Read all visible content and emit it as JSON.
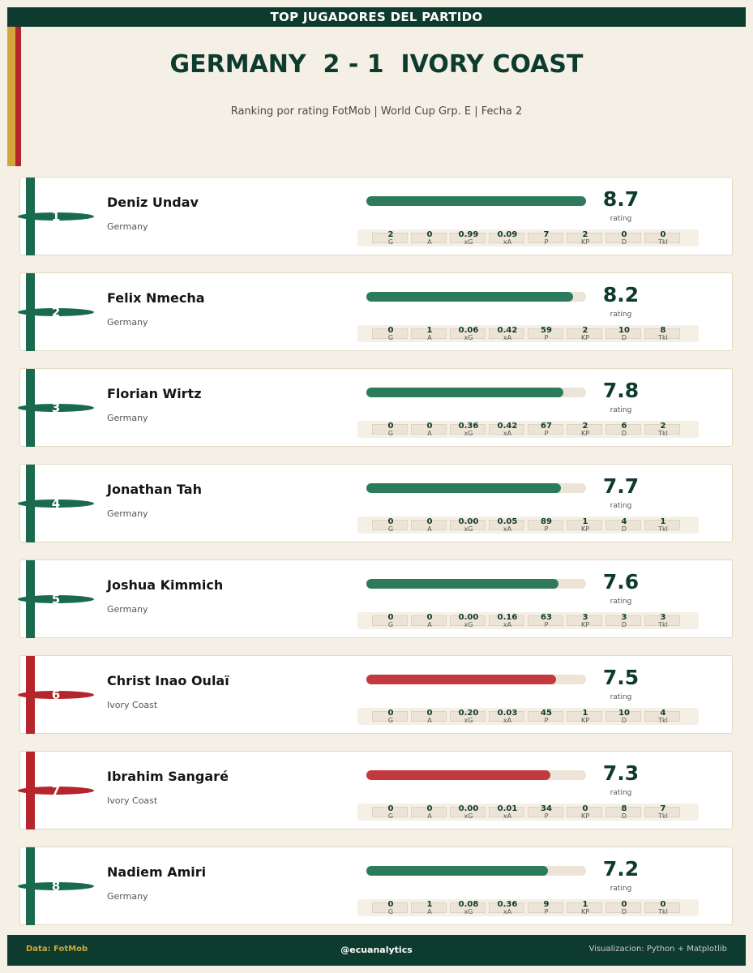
{
  "header": {
    "banner": "TOP JUGADORES DEL PARTIDO",
    "title": "GERMANY  2 - 1  IVORY COAST",
    "subtitle": "Ranking por rating FotMob | World Cup Grp. E | Fecha 2"
  },
  "colors": {
    "germany": "#1a6b4e",
    "germany_bar": "#2e7a5c",
    "ivory_coast": "#b5252b",
    "ivory_bar": "#c2393f",
    "dark": "#0d3b2e",
    "gold": "#d4a53c"
  },
  "rating_label": "rating",
  "rating_scale_max": 8.7,
  "stat_labels": [
    "G",
    "A",
    "xG",
    "xA",
    "P",
    "KP",
    "D",
    "Tkl"
  ],
  "players": [
    {
      "rank": "1",
      "name": "Deniz Undav",
      "team": "Germany",
      "rating": "8.7",
      "rating_value": 8.7,
      "stats": [
        "2",
        "0",
        "0.99",
        "0.09",
        "7",
        "2",
        "0",
        "0"
      ]
    },
    {
      "rank": "2",
      "name": "Felix Nmecha",
      "team": "Germany",
      "rating": "8.2",
      "rating_value": 8.2,
      "stats": [
        "0",
        "1",
        "0.06",
        "0.42",
        "59",
        "2",
        "10",
        "8"
      ]
    },
    {
      "rank": "3",
      "name": "Florian Wirtz",
      "team": "Germany",
      "rating": "7.8",
      "rating_value": 7.8,
      "stats": [
        "0",
        "0",
        "0.36",
        "0.42",
        "67",
        "2",
        "6",
        "2"
      ]
    },
    {
      "rank": "4",
      "name": "Jonathan Tah",
      "team": "Germany",
      "rating": "7.7",
      "rating_value": 7.7,
      "stats": [
        "0",
        "0",
        "0.00",
        "0.05",
        "89",
        "1",
        "4",
        "1"
      ]
    },
    {
      "rank": "5",
      "name": "Joshua Kimmich",
      "team": "Germany",
      "rating": "7.6",
      "rating_value": 7.6,
      "stats": [
        "0",
        "0",
        "0.00",
        "0.16",
        "63",
        "3",
        "3",
        "3"
      ]
    },
    {
      "rank": "6",
      "name": "Christ Inao Oulaï",
      "team": "Ivory Coast",
      "rating": "7.5",
      "rating_value": 7.5,
      "stats": [
        "0",
        "0",
        "0.20",
        "0.03",
        "45",
        "1",
        "10",
        "4"
      ]
    },
    {
      "rank": "7",
      "name": "Ibrahim Sangaré",
      "team": "Ivory Coast",
      "rating": "7.3",
      "rating_value": 7.3,
      "stats": [
        "0",
        "0",
        "0.00",
        "0.01",
        "34",
        "0",
        "8",
        "7"
      ]
    },
    {
      "rank": "8",
      "name": "Nadiem Amiri",
      "team": "Germany",
      "rating": "7.2",
      "rating_value": 7.2,
      "stats": [
        "0",
        "1",
        "0.08",
        "0.36",
        "9",
        "1",
        "0",
        "0"
      ]
    }
  ],
  "footer": {
    "left": "Data: FotMob",
    "center": "@ecuanalytics",
    "right": "Visualizacion: Python + Matplotlib"
  }
}
